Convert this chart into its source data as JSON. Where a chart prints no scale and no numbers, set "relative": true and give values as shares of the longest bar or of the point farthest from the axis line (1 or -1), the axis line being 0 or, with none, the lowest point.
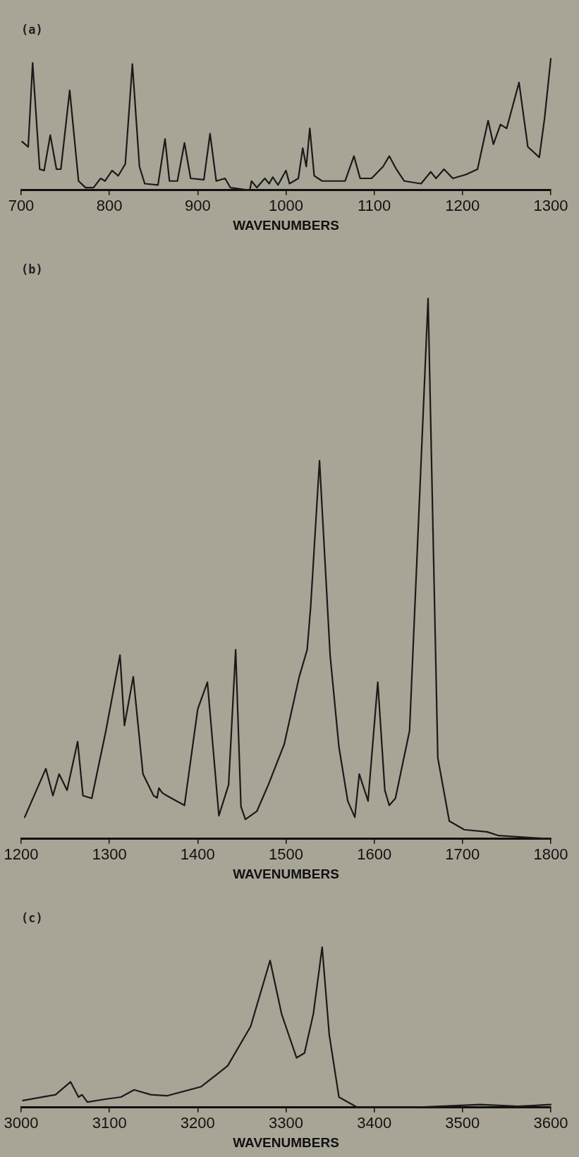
{
  "chart_data": [
    {
      "type": "line",
      "title": "(a)",
      "xlabel": "WAVENUMBERS",
      "relative": true,
      "xlim": [
        700,
        1300
      ],
      "xticks": [
        700,
        800,
        900,
        1000,
        1100,
        1200,
        1300
      ],
      "tick_labels": "x",
      "grid": false,
      "legend": false,
      "marker": "none",
      "line_style": "solid",
      "series": [
        {
          "color": "#1a1a1a",
          "x": [
            701,
            708,
            713,
            721,
            726,
            733,
            740,
            745,
            755,
            765,
            773,
            782,
            790,
            795,
            803,
            810,
            818,
            826,
            834,
            840,
            855,
            863,
            868,
            877,
            885,
            892,
            907,
            914,
            921,
            931,
            937,
            959,
            961,
            967,
            976,
            981,
            985,
            991,
            1000,
            1004,
            1014,
            1019,
            1023,
            1027,
            1032,
            1041,
            1067,
            1077,
            1084,
            1097,
            1110,
            1117,
            1125,
            1134,
            1153,
            1164,
            1170,
            1179,
            1189,
            1204,
            1217,
            1229,
            1235,
            1243,
            1250,
            1264,
            1274,
            1287,
            1293,
            1300
          ],
          "values": [
            0.37,
            0.33,
            0.97,
            0.16,
            0.15,
            0.42,
            0.16,
            0.16,
            0.76,
            0.07,
            0.02,
            0.02,
            0.09,
            0.07,
            0.15,
            0.11,
            0.2,
            0.96,
            0.18,
            0.05,
            0.04,
            0.39,
            0.07,
            0.07,
            0.36,
            0.09,
            0.08,
            0.43,
            0.07,
            0.09,
            0.02,
            0,
            0.07,
            0.02,
            0.09,
            0.05,
            0.1,
            0.04,
            0.15,
            0.05,
            0.09,
            0.32,
            0.18,
            0.47,
            0.11,
            0.07,
            0.07,
            0.26,
            0.09,
            0.09,
            0.18,
            0.26,
            0.16,
            0.07,
            0.05,
            0.14,
            0.09,
            0.16,
            0.09,
            0.12,
            0.16,
            0.53,
            0.35,
            0.5,
            0.47,
            0.82,
            0.33,
            0.25,
            0.55,
            1
          ]
        }
      ]
    },
    {
      "type": "line",
      "title": "(b)",
      "xlabel": "WAVENUMBERS",
      "relative": true,
      "xlim": [
        1200,
        1800
      ],
      "xticks": [
        1200,
        1300,
        1400,
        1500,
        1600,
        1700,
        1800
      ],
      "tick_labels": "x",
      "grid": false,
      "legend": false,
      "marker": "none",
      "line_style": "solid",
      "series": [
        {
          "color": "#1a1a1a",
          "x": [
            1204,
            1228,
            1236,
            1243,
            1252,
            1264,
            1270,
            1280,
            1296,
            1312,
            1317,
            1327,
            1338,
            1350,
            1354,
            1356,
            1360,
            1365,
            1385,
            1400,
            1411,
            1424,
            1435,
            1443,
            1449,
            1454,
            1467,
            1480,
            1498,
            1515,
            1524,
            1528,
            1538,
            1550,
            1560,
            1570,
            1578,
            1583,
            1593,
            1604,
            1612,
            1617,
            1624,
            1640,
            1661,
            1672,
            1685,
            1702,
            1728,
            1741,
            1800
          ],
          "values": [
            0.04,
            0.13,
            0.08,
            0.12,
            0.09,
            0.18,
            0.08,
            0.075,
            0.2,
            0.34,
            0.21,
            0.3,
            0.12,
            0.08,
            0.076,
            0.094,
            0.085,
            0.08,
            0.062,
            0.24,
            0.29,
            0.043,
            0.1,
            0.35,
            0.06,
            0.036,
            0.051,
            0.1,
            0.175,
            0.3,
            0.35,
            0.43,
            0.7,
            0.34,
            0.17,
            0.07,
            0.04,
            0.12,
            0.07,
            0.29,
            0.09,
            0.062,
            0.075,
            0.2,
            1,
            0.15,
            0.033,
            0.017,
            0.013,
            0.006,
            0
          ]
        }
      ]
    },
    {
      "type": "line",
      "title": "(c)",
      "xlabel": "WAVENUMBERS",
      "relative": true,
      "xlim": [
        3000,
        3600
      ],
      "xticks": [
        3000,
        3100,
        3200,
        3300,
        3400,
        3500,
        3600
      ],
      "tick_labels": "x",
      "grid": false,
      "legend": false,
      "marker": "none",
      "line_style": "solid",
      "series": [
        {
          "color": "#1a1a1a",
          "x": [
            3002,
            3039,
            3056,
            3065,
            3069,
            3075,
            3095,
            3113,
            3128,
            3147,
            3165,
            3204,
            3234,
            3260,
            3282,
            3295,
            3312,
            3321,
            3331,
            3341,
            3349,
            3360,
            3381,
            3442,
            3520,
            3563,
            3600
          ],
          "values": [
            0.044,
            0.08,
            0.16,
            0.065,
            0.08,
            0.034,
            0.052,
            0.065,
            0.11,
            0.08,
            0.073,
            0.13,
            0.26,
            0.506,
            0.917,
            0.584,
            0.31,
            0.34,
            0.584,
            1,
            0.455,
            0.065,
            0,
            0,
            0.018,
            0.008,
            0.018
          ]
        }
      ]
    }
  ]
}
